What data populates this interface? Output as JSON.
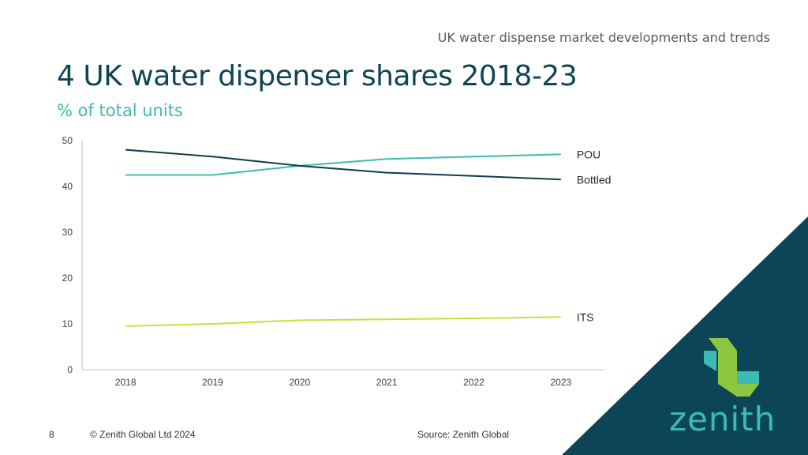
{
  "header": {
    "section": "UK water dispense market developments and trends",
    "title": "4 UK water dispenser shares 2018-23",
    "subtitle": "% of total units"
  },
  "chart_data": {
    "type": "line",
    "categories": [
      "2018",
      "2019",
      "2020",
      "2021",
      "2022",
      "2023"
    ],
    "series": [
      {
        "name": "POU",
        "values": [
          42.5,
          42.5,
          44.5,
          46.0,
          46.5,
          47.0
        ],
        "color": "#3cbcb0"
      },
      {
        "name": "Bottled",
        "values": [
          48.0,
          46.5,
          44.5,
          43.0,
          42.3,
          41.5
        ],
        "color": "#0e3c4a"
      },
      {
        "name": "ITS",
        "values": [
          9.5,
          10.0,
          10.8,
          11.0,
          11.2,
          11.5
        ],
        "color": "#c8e03a"
      }
    ],
    "y_ticks": [
      "0",
      "10",
      "20",
      "30",
      "40",
      "50"
    ],
    "ylim": [
      0,
      50
    ],
    "xlabel": "",
    "ylabel": "",
    "legend": "inline-right"
  },
  "footer": {
    "page_number": "8",
    "copyright": "© Zenith Global Ltd 2024",
    "source": "Source: Zenith Global"
  },
  "brand": {
    "name": "zenith",
    "corner_color": "#0b4557",
    "accent_green": "#8dc63f",
    "accent_teal": "#3cbcb0"
  }
}
